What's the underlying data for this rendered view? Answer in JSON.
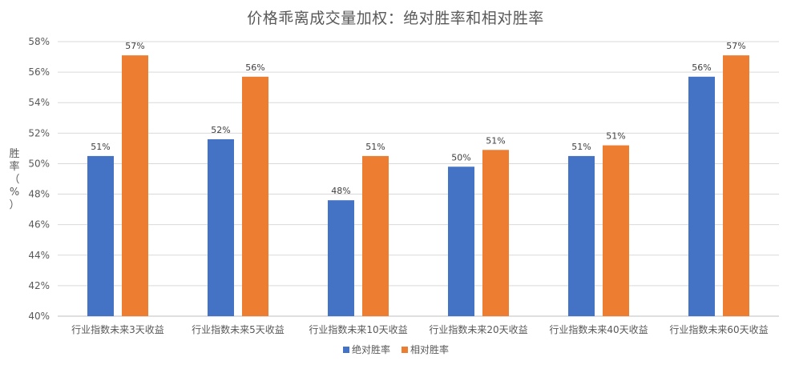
{
  "chart_data": {
    "type": "bar",
    "title": "价格乖离成交量加权：绝对胜率和相对胜率",
    "ylabel": "胜率（%）",
    "xlabel": "",
    "ylim": [
      40,
      58
    ],
    "y_ticks": [
      "40%",
      "42%",
      "44%",
      "46%",
      "48%",
      "50%",
      "52%",
      "54%",
      "56%",
      "58%"
    ],
    "grid": true,
    "legend_position": "bottom",
    "categories": [
      "行业指数未来3天收益",
      "行业指数未来5天收益",
      "行业指数未来10天收益",
      "行业指数未来20天收益",
      "行业指数未来40天收益",
      "行业指数未来60天收益"
    ],
    "series": [
      {
        "name": "绝对胜率",
        "color": "#4472C4",
        "values": [
          50.5,
          51.6,
          47.6,
          49.8,
          50.5,
          55.7
        ],
        "labels": [
          "51%",
          "52%",
          "48%",
          "50%",
          "51%",
          "56%"
        ]
      },
      {
        "name": "相对胜率",
        "color": "#ED7D31",
        "values": [
          57.1,
          55.7,
          50.5,
          50.9,
          51.2,
          57.1
        ],
        "labels": [
          "57%",
          "56%",
          "51%",
          "51%",
          "51%",
          "57%"
        ]
      }
    ]
  }
}
